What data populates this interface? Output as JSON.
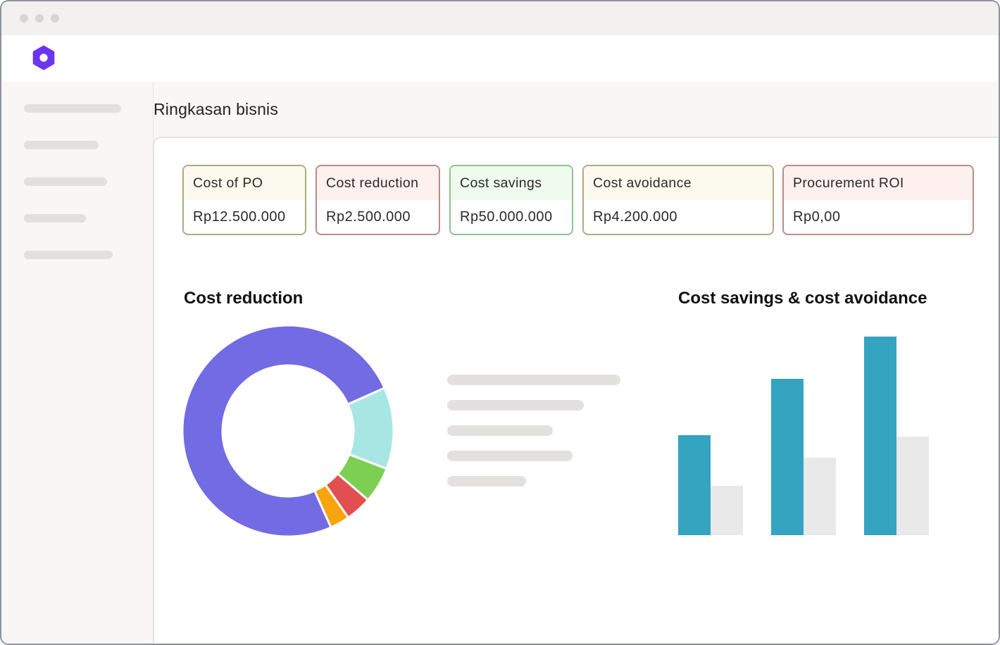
{
  "app": {
    "logo_icon": "hexagon-logo-icon",
    "brand_color": "#6c35f0"
  },
  "window": {
    "controls": [
      "window-dot",
      "window-dot",
      "window-dot"
    ]
  },
  "sidebar": {
    "items": [
      "",
      "",
      "",
      "",
      ""
    ]
  },
  "page": {
    "title": "Ringkasan bisnis"
  },
  "metrics": [
    {
      "label": "Cost of PO",
      "value": "Rp12.500.000",
      "border": "#a4b07f",
      "header_bg": "#fcf9ee"
    },
    {
      "label": "Cost reduction",
      "value": "Rp2.500.000",
      "border": "#b98a8a",
      "header_bg": "#fdf0ee"
    },
    {
      "label": "Cost savings",
      "value": "Rp50.000.000",
      "border": "#8fc48e",
      "header_bg": "#eefbee"
    },
    {
      "label": "Cost avoidance",
      "value": "Rp4.200.000",
      "border": "#adac80",
      "header_bg": "#fcf9ee"
    },
    {
      "label": "Procurement ROI",
      "value": "Rp0,00",
      "border": "#bb8b8b",
      "header_bg": "#fdf0ee"
    }
  ],
  "chart_data": [
    {
      "type": "pie",
      "title": "Cost reduction",
      "donut": true,
      "values": [
        75,
        12.5,
        5.5,
        4,
        3
      ],
      "colors": [
        "#736be3",
        "#a8e6e4",
        "#7ccf52",
        "#e24f50",
        "#f8a40c"
      ],
      "legend": [
        "",
        "",
        "",
        "",
        ""
      ]
    },
    {
      "type": "bar",
      "title": "Cost savings & cost avoidance",
      "categories": [
        "",
        "",
        ""
      ],
      "series": [
        {
          "values": [
            142,
            222,
            282
          ],
          "color": "#34a4c0"
        },
        {
          "values": [
            70,
            110,
            140
          ],
          "color": "#e9e9e9"
        }
      ],
      "ylim": [
        0,
        282
      ],
      "grid": false,
      "axes": false
    }
  ]
}
